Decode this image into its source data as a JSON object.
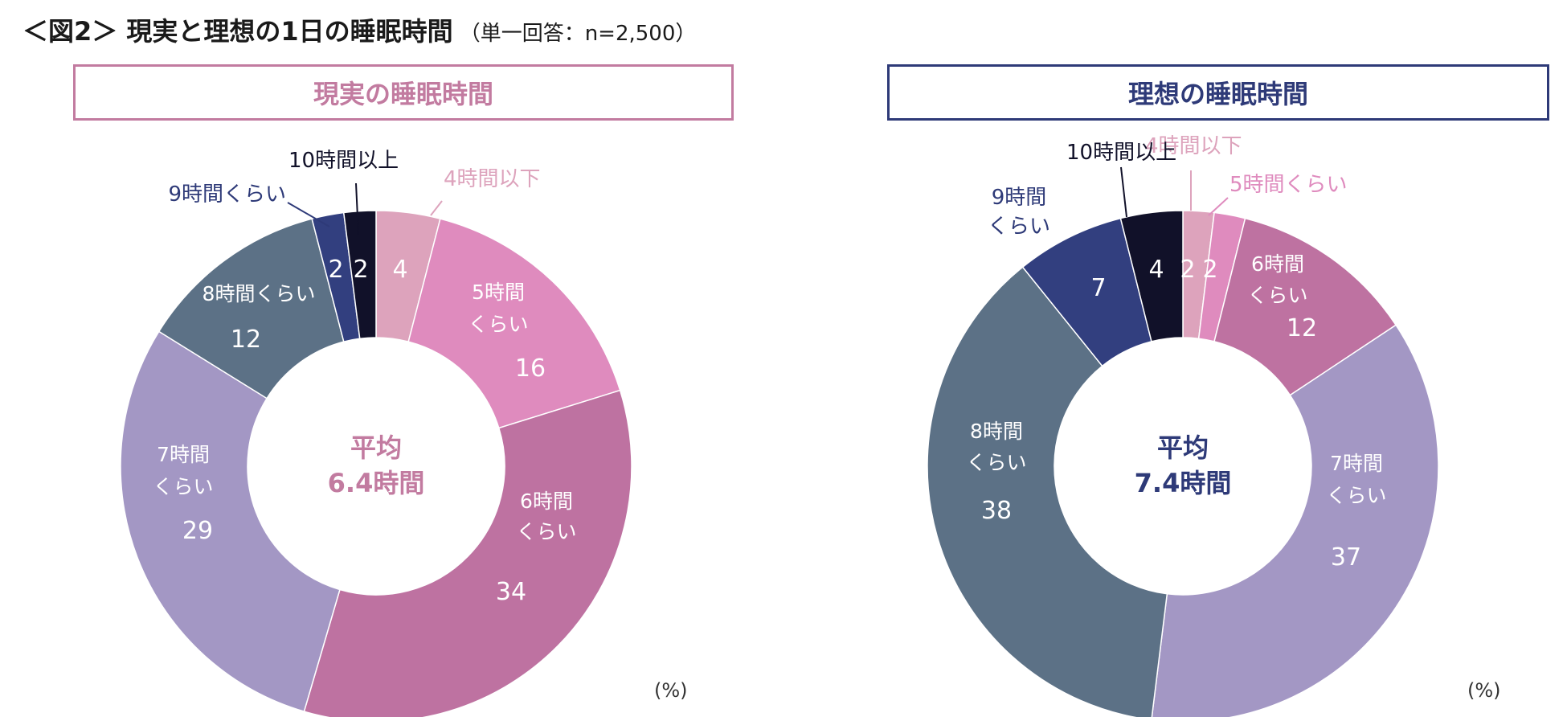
{
  "title": "＜図2＞ 現実と理想の1日の睡眠時間",
  "subtitle": "（単一回答：n=2,500）",
  "colors": {
    "pink_accent": "#C27BA0",
    "navy_accent": "#2E3A78"
  },
  "chart_data": [
    {
      "type": "pie",
      "title": "現実の睡眠時間",
      "center_label_line1": "平均",
      "center_label_line2": "6.4時間",
      "unit": "(%)",
      "slices": [
        {
          "label": "4時間以下",
          "value": 4,
          "color": "#DDA3BC"
        },
        {
          "label": "5時間くらい",
          "value": 16,
          "color": "#DF8BBE"
        },
        {
          "label": "6時間くらい",
          "value": 34,
          "color": "#BE72A1"
        },
        {
          "label": "7時間くらい",
          "value": 29,
          "color": "#A397C4"
        },
        {
          "label": "8時間くらい",
          "value": 12,
          "color": "#5C7186"
        },
        {
          "label": "9時間くらい",
          "value": 2,
          "color": "#323F7F"
        },
        {
          "label": "10時間以上",
          "value": 2,
          "color": "#111129"
        }
      ]
    },
    {
      "type": "pie",
      "title": "理想の睡眠時間",
      "center_label_line1": "平均",
      "center_label_line2": "7.4時間",
      "unit": "(%)",
      "slices": [
        {
          "label": "4時間以下",
          "value": 2,
          "color": "#DDA3BC"
        },
        {
          "label": "5時間くらい",
          "value": 2,
          "color": "#DF8BBE"
        },
        {
          "label": "6時間くらい",
          "value": 12,
          "color": "#BE72A1"
        },
        {
          "label": "7時間くらい",
          "value": 37,
          "color": "#A397C4"
        },
        {
          "label": "8時間くらい",
          "value": 38,
          "color": "#5C7186"
        },
        {
          "label": "9時間くらい",
          "value": 7,
          "color": "#323F7F"
        },
        {
          "label": "10時間以上",
          "value": 4,
          "color": "#111129"
        }
      ]
    }
  ]
}
